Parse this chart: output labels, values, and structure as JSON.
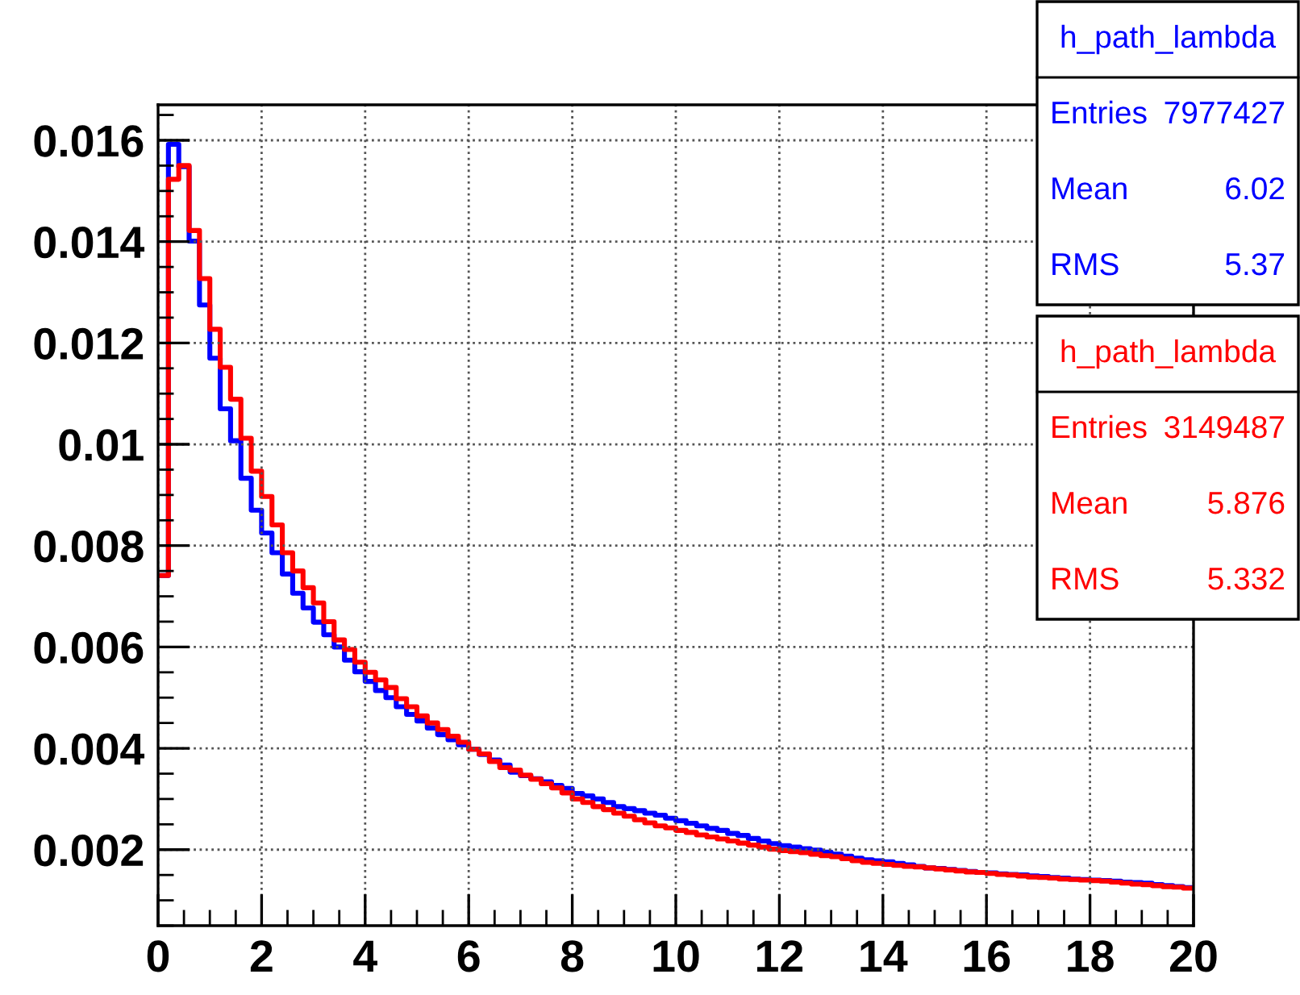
{
  "chart_data": {
    "type": "histogram",
    "bins": [
      0,
      0.2,
      0.4,
      0.6,
      0.8,
      1,
      1.2,
      1.4,
      1.6,
      1.8,
      2,
      2.2,
      2.4,
      2.6,
      2.8,
      3,
      3.2,
      3.4,
      3.6,
      3.8,
      4,
      4.2,
      4.4,
      4.6,
      4.8,
      5,
      5.2,
      5.4,
      5.6,
      5.8,
      6,
      6.2,
      6.4,
      6.6,
      6.8,
      7,
      7.2,
      7.4,
      7.6,
      7.8,
      8,
      8.2,
      8.4,
      8.6,
      8.8,
      9,
      9.2,
      9.4,
      9.6,
      9.8,
      10,
      10.2,
      10.4,
      10.6,
      10.8,
      11,
      11.2,
      11.4,
      11.6,
      11.8,
      12,
      12.2,
      12.4,
      12.6,
      12.8,
      13,
      13.2,
      13.4,
      13.6,
      13.8,
      14,
      14.2,
      14.4,
      14.6,
      14.8,
      15,
      15.2,
      15.4,
      15.6,
      15.8,
      16,
      16.2,
      16.4,
      16.6,
      16.8,
      17,
      17.2,
      17.4,
      17.6,
      17.8,
      18,
      18.2,
      18.4,
      18.6,
      18.8,
      19,
      19.2,
      19.4,
      19.6,
      19.8,
      20
    ],
    "series": [
      {
        "name": "h_path_lambda",
        "color": "#0000ff",
        "values": [
          0.00741,
          0.01592,
          0.01548,
          0.01401,
          0.01275,
          0.0117,
          0.0107,
          0.01007,
          0.00933,
          0.0087,
          0.00825,
          0.00786,
          0.00744,
          0.00706,
          0.00677,
          0.00649,
          0.00624,
          0.006,
          0.00574,
          0.00551,
          0.00532,
          0.00514,
          0.005,
          0.00482,
          0.00467,
          0.00454,
          0.0044,
          0.00427,
          0.00417,
          0.00407,
          0.00398,
          0.00388,
          0.00377,
          0.00367,
          0.00353,
          0.00346,
          0.0034,
          0.00334,
          0.00327,
          0.00321,
          0.00311,
          0.00306,
          0.003,
          0.00293,
          0.00285,
          0.00281,
          0.00277,
          0.00272,
          0.00268,
          0.00262,
          0.00257,
          0.00252,
          0.00247,
          0.00242,
          0.00238,
          0.00232,
          0.00228,
          0.00222,
          0.00217,
          0.00212,
          0.00208,
          0.00205,
          0.00202,
          0.00199,
          0.00195,
          0.00191,
          0.00187,
          0.00183,
          0.0018,
          0.00178,
          0.00176,
          0.00173,
          0.0017,
          0.00167,
          0.00164,
          0.00163,
          0.00161,
          0.00159,
          0.00157,
          0.00155,
          0.00154,
          0.00152,
          0.00151,
          0.0015,
          0.00148,
          0.00147,
          0.00145,
          0.00144,
          0.00142,
          0.00141,
          0.0014,
          0.00139,
          0.00138,
          0.00136,
          0.00135,
          0.00134,
          0.00131,
          0.00129,
          0.00127,
          0.00125
        ]
      },
      {
        "name": "h_path_lambda",
        "color": "#ff0000",
        "values": [
          0.00741,
          0.01523,
          0.0155,
          0.01422,
          0.01327,
          0.01227,
          0.01152,
          0.01089,
          0.01012,
          0.00947,
          0.00897,
          0.00841,
          0.00786,
          0.0075,
          0.00717,
          0.00687,
          0.0065,
          0.00614,
          0.00595,
          0.0057,
          0.0055,
          0.00535,
          0.0052,
          0.00498,
          0.00482,
          0.00464,
          0.0045,
          0.00437,
          0.00424,
          0.00412,
          0.00398,
          0.00389,
          0.00374,
          0.00362,
          0.00357,
          0.00347,
          0.00339,
          0.0033,
          0.00322,
          0.00312,
          0.003,
          0.00293,
          0.00285,
          0.00279,
          0.00272,
          0.00266,
          0.00259,
          0.00253,
          0.00247,
          0.00243,
          0.00238,
          0.00234,
          0.00229,
          0.00225,
          0.00221,
          0.00217,
          0.00213,
          0.00209,
          0.00205,
          0.00201,
          0.00198,
          0.00196,
          0.00194,
          0.00191,
          0.00188,
          0.00186,
          0.00182,
          0.00178,
          0.00175,
          0.00173,
          0.00171,
          0.00169,
          0.00167,
          0.00166,
          0.00164,
          0.00162,
          0.0016,
          0.00158,
          0.00156,
          0.00155,
          0.00153,
          0.00151,
          0.0015,
          0.00148,
          0.00146,
          0.00145,
          0.00144,
          0.00142,
          0.00141,
          0.0014,
          0.00139,
          0.00138,
          0.00136,
          0.00134,
          0.00132,
          0.00131,
          0.00129,
          0.00127,
          0.00126,
          0.00124
        ]
      }
    ],
    "annotations": [
      "Entries 7977427",
      "Mean 6.02",
      "RMS 5.37",
      "Entries 3149487",
      "Mean 5.876",
      "RMS 5.332"
    ],
    "xlim": [
      0,
      20
    ],
    "xticks": [
      0,
      2,
      4,
      6,
      8,
      10,
      12,
      14,
      16,
      18,
      20
    ],
    "ylim": [
      0.0005,
      0.0167
    ],
    "yticks": [
      0.002,
      0.004,
      0.006,
      0.008,
      0.01,
      0.012,
      0.014,
      0.016
    ],
    "grid": true,
    "legend": "top right",
    "line_style": "solid"
  }
}
